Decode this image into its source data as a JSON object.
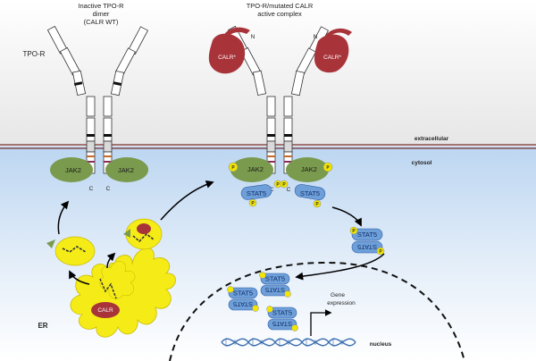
{
  "left_title": [
    "Inactive TPO-R",
    "dimer",
    "(CALR WT)"
  ],
  "right_title": [
    "TPO-R/mutated CALR",
    "active complex"
  ],
  "receptor_label": "TPO-R",
  "n_label": "N",
  "c_label": "C",
  "calr_mut_label": "CALR*",
  "calr_label": "CALR",
  "jak_label": "JAK2",
  "stat_label": "STAT5",
  "p_label": "P",
  "er_label": "ER",
  "gene_label": [
    "Gene",
    "expression"
  ],
  "zone_extracellular": "extracellular",
  "zone_cytosol": "cytosol",
  "zone_nucleus": "nucleus",
  "colors": {
    "calr_red": "#a8343a",
    "jak_green": "#7a9a4e",
    "stat_blue": "#6f9fd8",
    "phospho_yellow": "#f2e600",
    "er_yellow": "#f5ec17",
    "dna_blue": "#3d6fb0"
  }
}
